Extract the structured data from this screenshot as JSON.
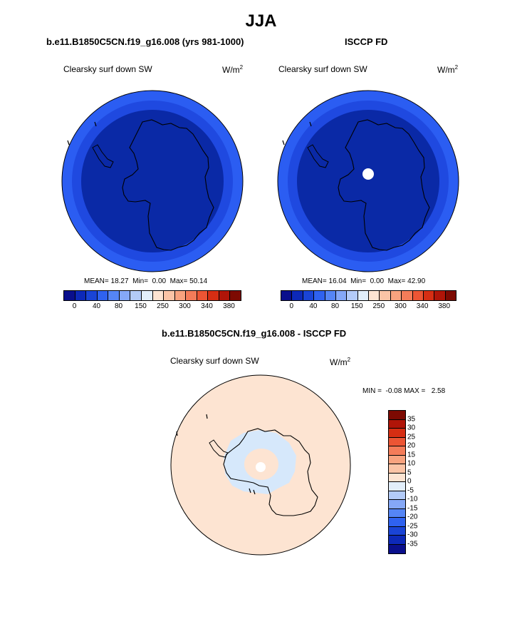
{
  "season": "JJA",
  "panels": [
    {
      "case": "b.e11.B1850C5CN.f19_g16.008 (yrs 981-1000)",
      "variable": "Clearsky surf down SW",
      "units": "W/m",
      "units_sup": "2",
      "stats": "MEAN= 18.27  Min=  0.00  Max= 50.14",
      "outer_color": "#2b5df2",
      "ring_color": "#1f49e0",
      "inner_color": "#0a29a6",
      "pole_hole": false
    },
    {
      "case": "ISCCP FD",
      "variable": "Clearsky surf down SW",
      "units": "W/m",
      "units_sup": "2",
      "stats": "MEAN= 16.04  Min=  0.00  Max= 42.90",
      "outer_color": "#2b5df2",
      "ring_color": "#1f49e0",
      "inner_color": "#0a29a6",
      "pole_hole": true
    }
  ],
  "abs_colorbar": {
    "colors": [
      "#0a0f8c",
      "#0d29b8",
      "#1a44d6",
      "#2f62f0",
      "#5585f5",
      "#85a8f7",
      "#b3cbf8",
      "#e2eefa",
      "#fde4d2",
      "#fbc4a6",
      "#f8a37f",
      "#f47c59",
      "#ec5534",
      "#d62e13",
      "#b01508",
      "#7d0a02"
    ],
    "labels": [
      "0",
      "40",
      "80",
      "150",
      "250",
      "300",
      "340",
      "380"
    ]
  },
  "diff": {
    "title": "b.e11.B1850C5CN.f19_g16.008 - ISCCP FD",
    "variable": "Clearsky surf down SW",
    "units": "W/m",
    "units_sup": "2",
    "stats": "MIN =  -0.08 MAX =   2.58",
    "background_color": "#fde4d2",
    "negative_color": "#d6e8fb",
    "colorbar": {
      "colors": [
        "#7d0a02",
        "#b01508",
        "#d62e13",
        "#ec5534",
        "#f47c59",
        "#f8a37f",
        "#fbc4a6",
        "#fde4d2",
        "#e2eefa",
        "#b3cbf8",
        "#85a8f7",
        "#5585f5",
        "#2f62f0",
        "#1a44d6",
        "#0d29b8",
        "#0a0f8c"
      ],
      "labels": [
        "35",
        "30",
        "25",
        "20",
        "15",
        "10",
        "5",
        "0",
        "-5",
        "-10",
        "-15",
        "-20",
        "-25",
        "-30",
        "-35"
      ]
    }
  }
}
